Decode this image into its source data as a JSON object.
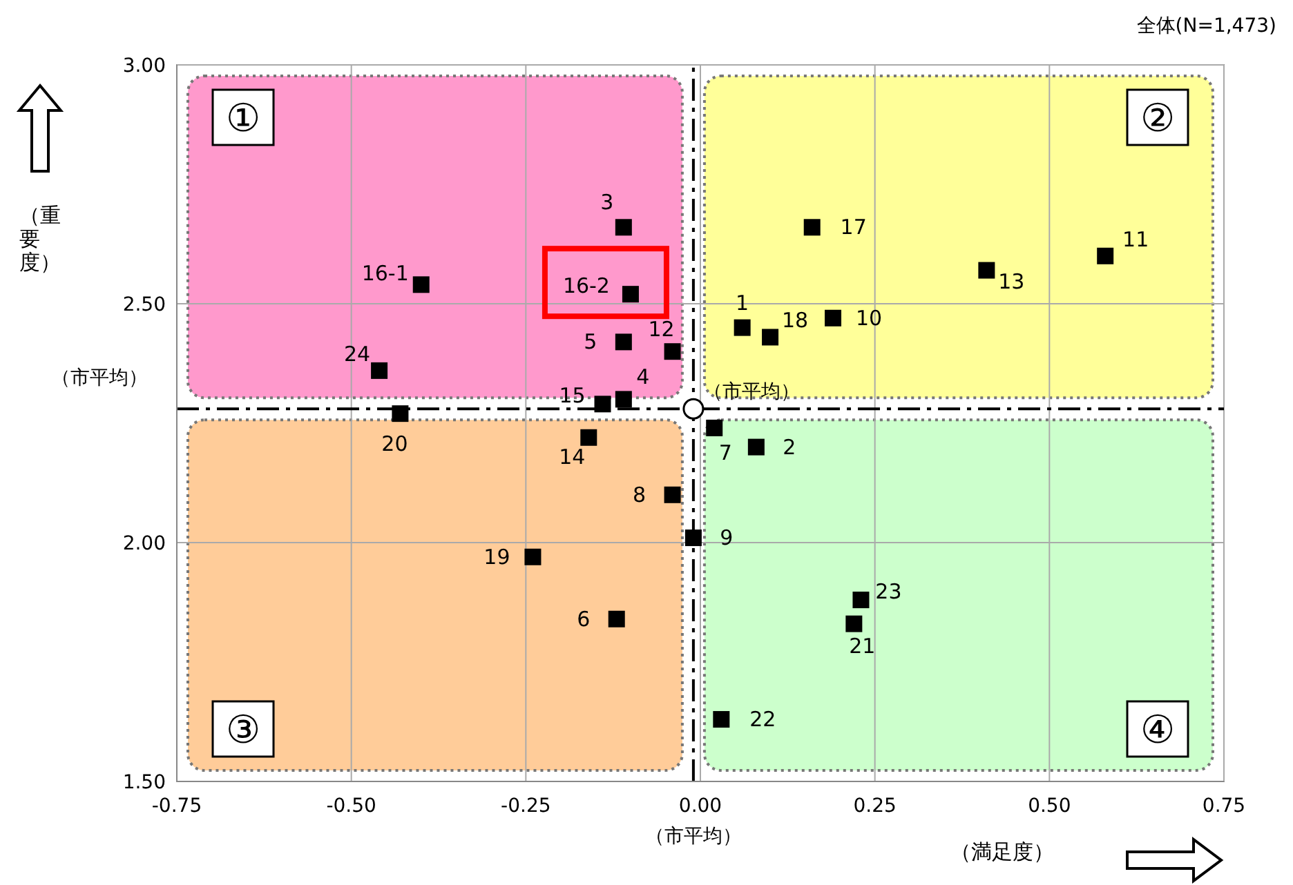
{
  "chart_data": {
    "type": "scatter",
    "title": "全体(N=1,473)",
    "xlabel": "（満足度）",
    "ylabel": "（重要度）",
    "xlim": [
      -0.75,
      0.75
    ],
    "xticks": [
      {
        "value": -0.75,
        "label": "-0.75"
      },
      {
        "value": -0.5,
        "label": "-0.50"
      },
      {
        "value": -0.25,
        "label": "-0.25"
      },
      {
        "value": 0,
        "label": "0.00"
      },
      {
        "value": 0.25,
        "label": "0.25"
      },
      {
        "value": 0.5,
        "label": "0.50"
      },
      {
        "value": 0.75,
        "label": "0.75"
      }
    ],
    "ylim": [
      1.5,
      3.0
    ],
    "yticks": [
      {
        "value": 1.5,
        "label": "1.50"
      },
      {
        "value": 2,
        "label": "2.00"
      },
      {
        "value": 2.5,
        "label": "2.50"
      },
      {
        "value": 3,
        "label": "3.00"
      }
    ],
    "grid": true,
    "legend": false,
    "marker": "square",
    "line_style": "dashed",
    "series": [
      {
        "color": "#000000",
        "x": [
          0.06,
          0.08,
          -0.11,
          -0.11,
          -0.11,
          -0.12,
          0.02,
          -0.04,
          -0.01,
          0.19,
          0.58,
          -0.04,
          0.41,
          -0.16,
          -0.14,
          -0.4,
          -0.1,
          0.16,
          0.1,
          -0.24,
          -0.43,
          0.22,
          0.03,
          0.23,
          -0.46
        ],
        "values": [
          2.45,
          2.2,
          2.66,
          2.3,
          2.42,
          1.84,
          2.24,
          2.1,
          2.01,
          2.47,
          2.6,
          2.4,
          2.57,
          2.22,
          2.29,
          2.54,
          2.52,
          2.66,
          2.43,
          1.97,
          2.27,
          1.83,
          1.63,
          1.88,
          2.36
        ]
      }
    ],
    "ref_lines": [
      {
        "axis": "x",
        "value": -0.01,
        "label": "（市平均）"
      },
      {
        "axis": "y",
        "value": 2.28,
        "label": "（市平均）"
      }
    ],
    "annotations": [
      "①",
      "②",
      "③",
      "④",
      "（市平均）",
      {
        "text": "1",
        "x": 0.06,
        "y": 2.45
      },
      {
        "text": "2",
        "x": 0.08,
        "y": 2.2
      },
      {
        "text": "3",
        "x": -0.11,
        "y": 2.66
      },
      {
        "text": "4",
        "x": -0.11,
        "y": 2.3
      },
      {
        "text": "5",
        "x": -0.11,
        "y": 2.42
      },
      {
        "text": "6",
        "x": -0.12,
        "y": 1.84
      },
      {
        "text": "7",
        "x": 0.02,
        "y": 2.24
      },
      {
        "text": "8",
        "x": -0.04,
        "y": 2.1
      },
      {
        "text": "9",
        "x": -0.01,
        "y": 2.01
      },
      {
        "text": "10",
        "x": 0.19,
        "y": 2.47
      },
      {
        "text": "11",
        "x": 0.58,
        "y": 2.6
      },
      {
        "text": "12",
        "x": -0.04,
        "y": 2.4
      },
      {
        "text": "13",
        "x": 0.41,
        "y": 2.57
      },
      {
        "text": "14",
        "x": -0.16,
        "y": 2.22
      },
      {
        "text": "15",
        "x": -0.14,
        "y": 2.29
      },
      {
        "text": "16-1",
        "x": -0.4,
        "y": 2.54
      },
      {
        "text": "16-2",
        "x": -0.1,
        "y": 2.52
      },
      {
        "text": "17",
        "x": 0.16,
        "y": 2.66
      },
      {
        "text": "18",
        "x": 0.1,
        "y": 2.43
      },
      {
        "text": "19",
        "x": -0.24,
        "y": 1.97
      },
      {
        "text": "20",
        "x": -0.43,
        "y": 2.27
      },
      {
        "text": "21",
        "x": 0.22,
        "y": 1.83
      },
      {
        "text": "22",
        "x": 0.03,
        "y": 1.63
      },
      {
        "text": "23",
        "x": 0.23,
        "y": 1.88
      },
      {
        "text": "24",
        "x": -0.46,
        "y": 2.36
      }
    ]
  }
}
